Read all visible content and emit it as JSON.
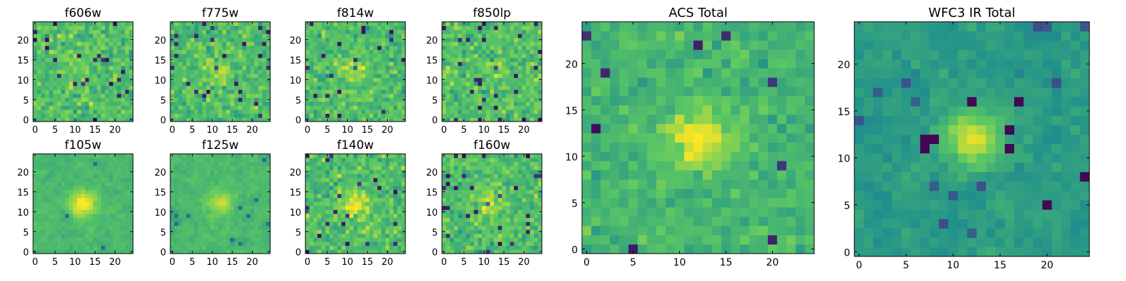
{
  "figure": {
    "colormap": [
      "#440154",
      "#3b528b",
      "#21918c",
      "#5ec962",
      "#fde725"
    ]
  },
  "chart_data": [
    {
      "type": "heatmap",
      "title": "f606w",
      "xlim": [
        -0.5,
        24.5
      ],
      "ylim": [
        -0.5,
        24.5
      ],
      "xticks": [
        0,
        5,
        10,
        15,
        20
      ],
      "yticks": [
        0,
        5,
        10,
        15,
        20
      ],
      "grid_size": 25,
      "seed": 11,
      "mode": "noise",
      "peak": 0.05
    },
    {
      "type": "heatmap",
      "title": "f775w",
      "xlim": [
        -0.5,
        24.5
      ],
      "ylim": [
        -0.5,
        24.5
      ],
      "xticks": [
        0,
        5,
        10,
        15,
        20
      ],
      "yticks": [
        0,
        5,
        10,
        15,
        20
      ],
      "grid_size": 25,
      "seed": 23,
      "mode": "noise",
      "peak": 0.12
    },
    {
      "type": "heatmap",
      "title": "f814w",
      "xlim": [
        -0.5,
        24.5
      ],
      "ylim": [
        -0.5,
        24.5
      ],
      "xticks": [
        0,
        5,
        10,
        15,
        20
      ],
      "yticks": [
        0,
        5,
        10,
        15,
        20
      ],
      "grid_size": 25,
      "seed": 37,
      "mode": "noise",
      "peak": 0.18
    },
    {
      "type": "heatmap",
      "title": "f850lp",
      "xlim": [
        -0.5,
        24.5
      ],
      "ylim": [
        -0.5,
        24.5
      ],
      "xticks": [
        0,
        5,
        10,
        15,
        20
      ],
      "yticks": [
        0,
        5,
        10,
        15,
        20
      ],
      "grid_size": 25,
      "seed": 41,
      "mode": "noise",
      "peak": 0.08
    },
    {
      "type": "heatmap",
      "title": "f105w",
      "xlim": [
        -0.5,
        24.5
      ],
      "ylim": [
        -0.5,
        24.5
      ],
      "xticks": [
        0,
        5,
        10,
        15,
        20
      ],
      "yticks": [
        0,
        5,
        10,
        15,
        20
      ],
      "grid_size": 25,
      "seed": 53,
      "mode": "smooth",
      "peak": 0.35
    },
    {
      "type": "heatmap",
      "title": "f125w",
      "xlim": [
        -0.5,
        24.5
      ],
      "ylim": [
        -0.5,
        24.5
      ],
      "xticks": [
        0,
        5,
        10,
        15,
        20
      ],
      "yticks": [
        0,
        5,
        10,
        15,
        20
      ],
      "grid_size": 25,
      "seed": 67,
      "mode": "smooth",
      "peak": 0.22
    },
    {
      "type": "heatmap",
      "title": "f140w",
      "xlim": [
        -0.5,
        24.5
      ],
      "ylim": [
        -0.5,
        24.5
      ],
      "xticks": [
        0,
        5,
        10,
        15,
        20
      ],
      "yticks": [
        0,
        5,
        10,
        15,
        20
      ],
      "grid_size": 25,
      "seed": 79,
      "mode": "noise",
      "peak": 0.28
    },
    {
      "type": "heatmap",
      "title": "f160w",
      "xlim": [
        -0.5,
        24.5
      ],
      "ylim": [
        -0.5,
        24.5
      ],
      "xticks": [
        0,
        5,
        10,
        15,
        20
      ],
      "yticks": [
        0,
        5,
        10,
        15,
        20
      ],
      "grid_size": 25,
      "seed": 83,
      "mode": "noise",
      "peak": 0.22
    },
    {
      "type": "heatmap",
      "title": "ACS Total",
      "xlim": [
        -0.5,
        24.5
      ],
      "ylim": [
        -0.5,
        24.5
      ],
      "xticks": [
        0,
        5,
        10,
        15,
        20
      ],
      "yticks": [
        0,
        5,
        10,
        15,
        20
      ],
      "grid_size": 25,
      "seed": 97,
      "mode": "acs",
      "peak": 0.32
    },
    {
      "type": "heatmap",
      "title": "WFC3 IR Total",
      "xlim": [
        -0.5,
        24.5
      ],
      "ylim": [
        -0.5,
        24.5
      ],
      "xticks": [
        0,
        5,
        10,
        15,
        20
      ],
      "yticks": [
        0,
        5,
        10,
        15,
        20
      ],
      "grid_size": 25,
      "seed": 101,
      "mode": "wfc3",
      "peak": 0.38
    }
  ]
}
